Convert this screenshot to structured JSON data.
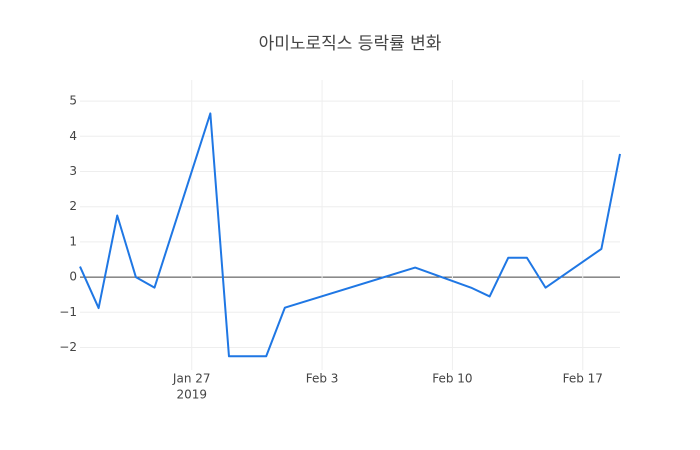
{
  "chart_data": {
    "type": "line",
    "title": "아미노로직스 등락률 변화",
    "x": [
      "2019-01-21",
      "2019-01-22",
      "2019-01-23",
      "2019-01-24",
      "2019-01-25",
      "2019-01-28",
      "2019-01-29",
      "2019-01-31",
      "2019-02-01",
      "2019-02-08",
      "2019-02-11",
      "2019-02-12",
      "2019-02-13",
      "2019-02-14",
      "2019-02-15",
      "2019-02-18",
      "2019-02-19"
    ],
    "series": [
      {
        "name": "등락률",
        "color": "#1f77e4",
        "values": [
          0.3,
          -0.88,
          1.75,
          0,
          -0.3,
          4.65,
          -2.25,
          -2.25,
          -0.87,
          0.27,
          -0.3,
          -0.55,
          0.55,
          0.55,
          -0.3,
          0.8,
          3.5
        ]
      }
    ],
    "xlim": [
      "2019-01-21",
      "2019-02-19"
    ],
    "xticks": [
      {
        "value": "2019-01-27",
        "label": "Jan 27"
      },
      {
        "value": "2019-02-03",
        "label": "Feb 3"
      },
      {
        "value": "2019-02-10",
        "label": "Feb 10"
      },
      {
        "value": "2019-02-17",
        "label": "Feb 17"
      }
    ],
    "x_year_label": "2019",
    "ylim": [
      -2.64,
      5.6
    ],
    "yticks": [
      {
        "value": -2,
        "label": "−2"
      },
      {
        "value": -1,
        "label": "−1"
      },
      0,
      1,
      2,
      3,
      4,
      5
    ],
    "grid": true,
    "zero_line": true
  }
}
